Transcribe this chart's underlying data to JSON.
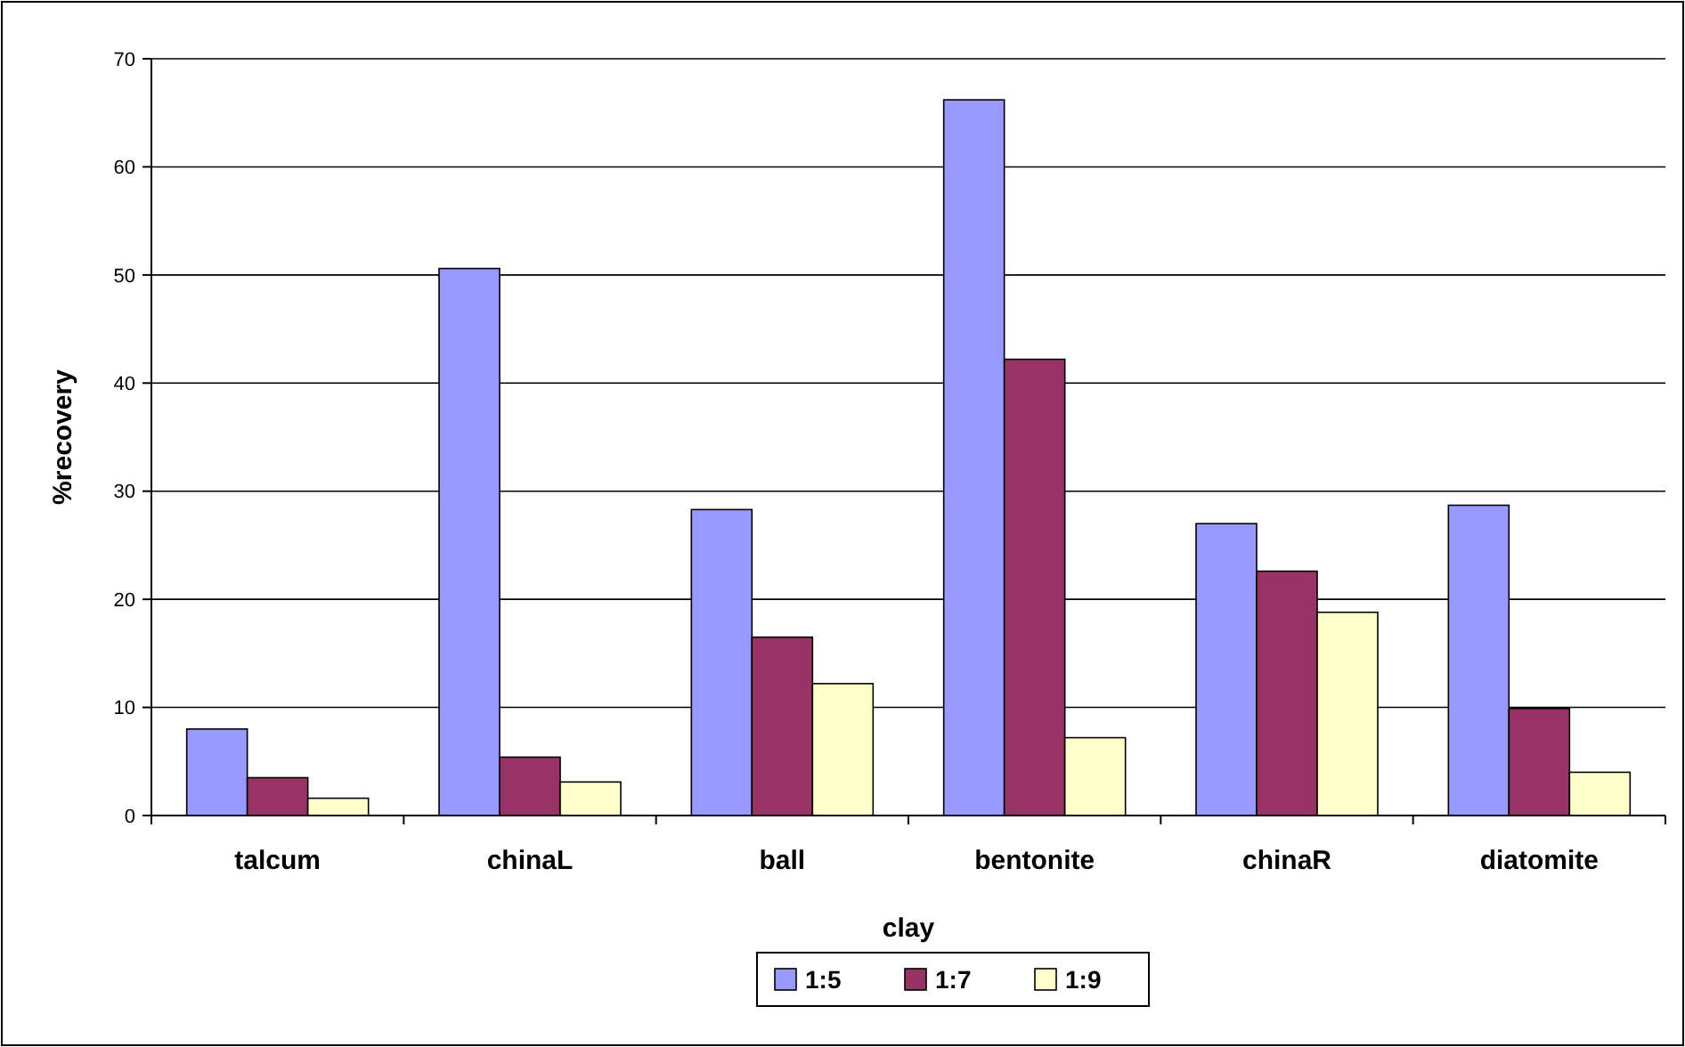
{
  "chart_data": {
    "type": "bar",
    "xlabel": "clay",
    "ylabel": "%recovery",
    "categories": [
      "talcum",
      "chinaL",
      "ball",
      "bentonite",
      "chinaR",
      "diatomite"
    ],
    "series": [
      {
        "name": "1:5",
        "color": "#9999ff",
        "values": [
          8.0,
          50.6,
          28.3,
          66.2,
          27.0,
          28.7
        ]
      },
      {
        "name": "1:7",
        "color": "#993366",
        "values": [
          3.5,
          5.4,
          16.5,
          42.2,
          22.6,
          9.9
        ]
      },
      {
        "name": "1:9",
        "color": "#ffffcc",
        "values": [
          1.6,
          3.1,
          12.2,
          7.2,
          18.8,
          4.0
        ]
      }
    ],
    "ylim": [
      0,
      70
    ],
    "yticks": [
      0,
      10,
      20,
      30,
      40,
      50,
      60,
      70
    ],
    "grid": "y",
    "legend": "bottom"
  }
}
